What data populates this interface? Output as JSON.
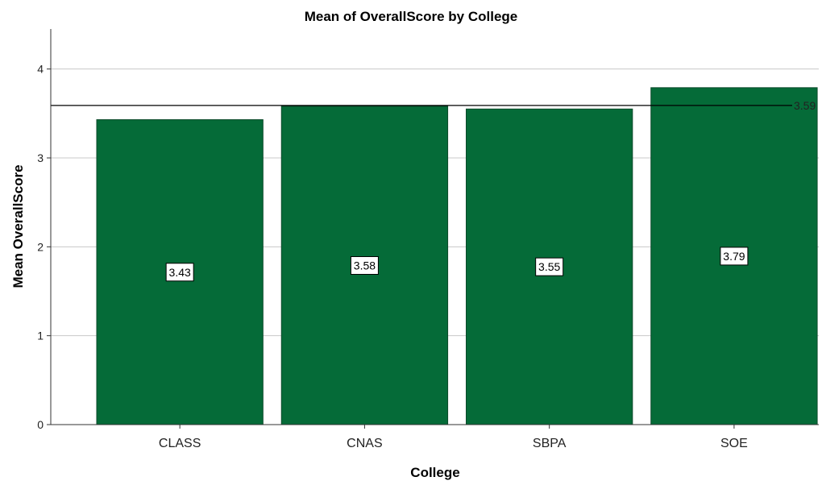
{
  "chart_data": {
    "type": "bar",
    "title": "Mean of OverallScore by College",
    "xlabel": "College",
    "ylabel": "Mean OverallScore",
    "categories": [
      "CLASS",
      "CNAS",
      "SBPA",
      "SOE"
    ],
    "values": [
      3.43,
      3.58,
      3.55,
      3.79
    ],
    "data_labels": [
      "3.43",
      "3.58",
      "3.55",
      "3.79"
    ],
    "ylim": [
      0,
      4.45
    ],
    "yticks": [
      0,
      1,
      2,
      3,
      4
    ],
    "ytick_labels": [
      "0",
      "1",
      "2",
      "3",
      "4"
    ],
    "reference_line": {
      "value": 3.59,
      "label": "3.59"
    },
    "grid": true,
    "legend": "none",
    "colors": {
      "bar": "#056b38",
      "bar_edge": "#0b4a2a",
      "grid": "#c8c8c8",
      "reference_line": "#000000",
      "axis": "#333333"
    }
  }
}
